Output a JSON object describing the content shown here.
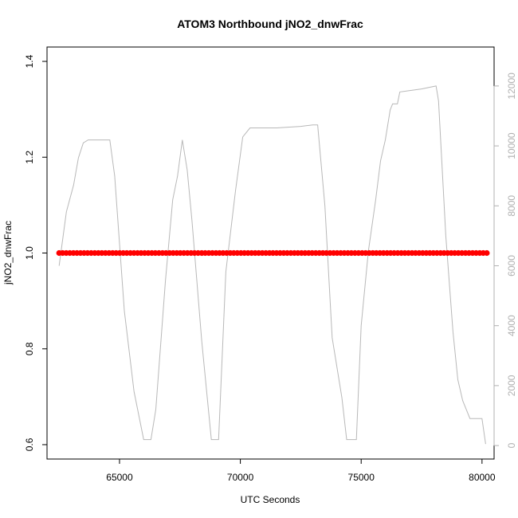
{
  "chart_data": {
    "type": "line",
    "title": "ATOM3 Northbound jNO2_dnwFrac",
    "xlabel": "UTC Seconds",
    "ylabel": "jNO2_dnwFrac",
    "xlim": [
      62000,
      80500
    ],
    "ylim": [
      0.57,
      1.43
    ],
    "y2lim": [
      -450,
      13300
    ],
    "x_ticks": [
      65000,
      70000,
      75000,
      80000
    ],
    "x_tick_labels": [
      "65000",
      "70000",
      "75000",
      "80000"
    ],
    "y_ticks": [
      0.6,
      0.8,
      1.0,
      1.2,
      1.4
    ],
    "y_tick_labels": [
      "0.6",
      "0.8",
      "1.0",
      "1.2",
      "1.4"
    ],
    "y2_ticks": [
      0,
      2000,
      4000,
      6000,
      8000,
      10000,
      12000
    ],
    "y2_tick_labels": [
      "0",
      "2000",
      "4000",
      "6000",
      "8000",
      "10000",
      "12000"
    ],
    "grid": false,
    "series": [
      {
        "axis": "left",
        "color": "#ff0000",
        "style": "thick-points",
        "x": [
          62500,
          80200
        ],
        "y": [
          1.0,
          1.0
        ]
      },
      {
        "axis": "right",
        "color": "#b8b8b8",
        "style": "thin-line",
        "x": [
          62500,
          62800,
          63100,
          63300,
          63500,
          63700,
          64000,
          64300,
          64600,
          64800,
          65200,
          65600,
          66000,
          66300,
          66500,
          66900,
          67200,
          67400,
          67600,
          67800,
          68000,
          68400,
          68800,
          69100,
          69400,
          69800,
          70100,
          70400,
          71500,
          72500,
          73000,
          73200,
          73500,
          73800,
          74200,
          74400,
          74800,
          75000,
          75300,
          75600,
          75800,
          76000,
          76200,
          76300,
          76500,
          76600,
          77500,
          78100,
          78200,
          78500,
          78800,
          79000,
          79200,
          79500,
          79800,
          80000,
          80150
        ],
        "y": [
          6000,
          7800,
          8700,
          9600,
          10100,
          10200,
          10200,
          10200,
          10200,
          9000,
          4500,
          1800,
          200,
          200,
          1200,
          5500,
          8200,
          9000,
          10200,
          9200,
          7500,
          3500,
          200,
          200,
          5800,
          8500,
          10300,
          10600,
          10600,
          10650,
          10700,
          10700,
          8000,
          3600,
          1600,
          200,
          200,
          4000,
          6500,
          8200,
          9500,
          10200,
          11200,
          11400,
          11400,
          11800,
          11900,
          12000,
          11500,
          7000,
          3800,
          2200,
          1500,
          900,
          900,
          900,
          50
        ]
      }
    ]
  }
}
